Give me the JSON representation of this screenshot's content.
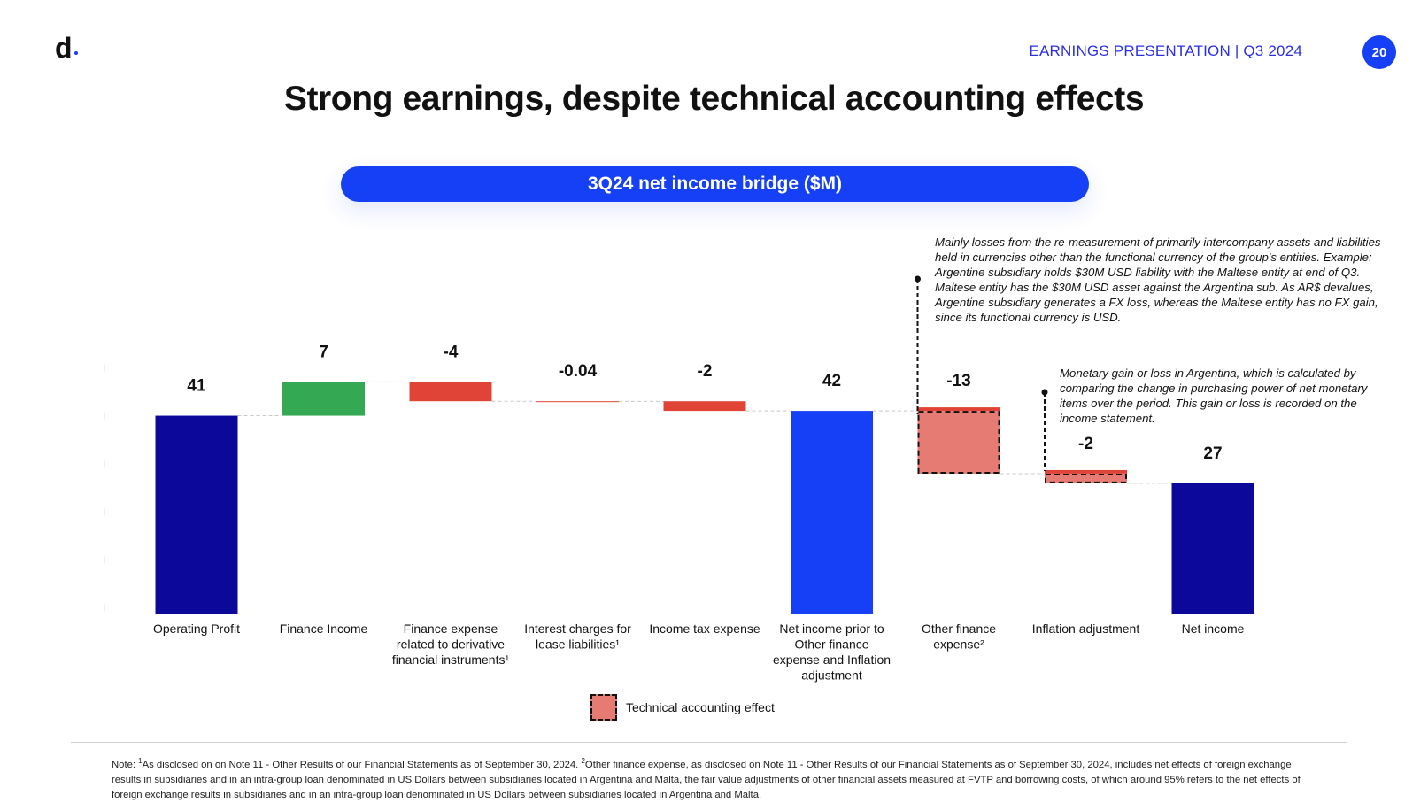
{
  "header": {
    "logo_text": "d",
    "presentation_label": "EARNINGS PRESENTATION | Q3 2024",
    "page_number": "20"
  },
  "title": "Strong earnings, despite technical accounting effects",
  "subtitle_pill": "3Q24 net income bridge ($M)",
  "annotations": {
    "fx": "Mainly losses from the re-measurement of primarily intercompany assets and liabilities held in currencies other than the functional currency of the group's entities. Example: Argentine subsidiary holds $30M USD liability with the Maltese entity at end of Q3. Maltese entity has the $30M USD asset against the Argentina sub. As AR$ devalues, Argentine subsidiary generates a FX loss, whereas the Maltese entity has no FX gain, since its functional currency is USD.",
    "inflation": "Monetary gain or loss in Argentina, which is calculated by comparing the change in purchasing power of net monetary items over the period. This gain or loss is recorded on the income statement."
  },
  "legend": {
    "technical_label": "Technical accounting effect"
  },
  "colors": {
    "dark_navy": "#0c0899",
    "bright_blue": "#1540f5",
    "green": "#34a853",
    "red": "#df4437",
    "salmon": "#e57b72"
  },
  "chart_data": {
    "type": "waterfall",
    "ylim": [
      0,
      50
    ],
    "bars": [
      {
        "label": "Operating Profit",
        "label_lines": [
          "Operating Profit"
        ],
        "display": "41",
        "value": 41,
        "start": 0,
        "end": 41,
        "kind": "total",
        "color": "#0c0899"
      },
      {
        "label": "Finance Income",
        "label_lines": [
          "Finance Income"
        ],
        "display": "7",
        "value": 7,
        "start": 41,
        "end": 48,
        "kind": "increase",
        "color": "#34a853"
      },
      {
        "label": "Finance expense related to derivative financial instruments¹",
        "label_lines": [
          "Finance expense",
          "related to derivative",
          "financial instruments¹"
        ],
        "display": "-4",
        "value": -4,
        "start": 48,
        "end": 44,
        "kind": "decrease",
        "color": "#df4437"
      },
      {
        "label": "Interest charges for lease liabilities¹",
        "label_lines": [
          "Interest charges for",
          "lease liabilities¹"
        ],
        "display": "-0.04",
        "value": -0.04,
        "start": 44,
        "end": 43.96,
        "kind": "decrease",
        "color": "#df4437"
      },
      {
        "label": "Income tax expense",
        "label_lines": [
          "Income tax expense"
        ],
        "display": "-2",
        "value": -2,
        "start": 44,
        "end": 42,
        "kind": "decrease",
        "color": "#df4437"
      },
      {
        "label": "Net income prior to Other finance expense and Inflation adjustment",
        "label_lines": [
          "Net income prior to",
          "Other finance",
          "expense and Inflation",
          "adjustment"
        ],
        "display": "42",
        "value": 42,
        "start": 0,
        "end": 42,
        "kind": "total",
        "color": "#1540f5"
      },
      {
        "label": "Other finance expense²",
        "label_lines": [
          "Other finance",
          "expense²"
        ],
        "display": "-13",
        "value": -13,
        "start": 42,
        "end": 29,
        "kind": "technical",
        "color": "#e57b72"
      },
      {
        "label": "Inflation adjustment",
        "label_lines": [
          "Inflation adjustment"
        ],
        "display": "-2",
        "value": -2,
        "start": 29,
        "end": 27,
        "kind": "technical",
        "color": "#e57b72"
      },
      {
        "label": "Net income",
        "label_lines": [
          "Net income"
        ],
        "display": "27",
        "value": 27,
        "start": 0,
        "end": 27,
        "kind": "total",
        "color": "#0c0899"
      }
    ]
  },
  "note": {
    "prefix": "Note: ",
    "sup1": "1",
    "text1": "As disclosed on on Note 11 - Other Results of our Financial Statements as of September 30, 2024. ",
    "sup2": "2",
    "text2": "Other finance expense, as disclosed on Note 11 - Other Results of our Financial Statements as of September 30, 2024, includes net effects of foreign exchange results in subsidiaries and in an intra-group loan denominated in US Dollars between subsidiaries located in Argentina and Malta, the fair value adjustments of other financial assets measured at FVTP and borrowing costs, of which around 95% refers to the net effects of foreign exchange results in subsidiaries and in an intra-group loan denominated in US Dollars between subsidiaries located in Argentina and Malta."
  }
}
